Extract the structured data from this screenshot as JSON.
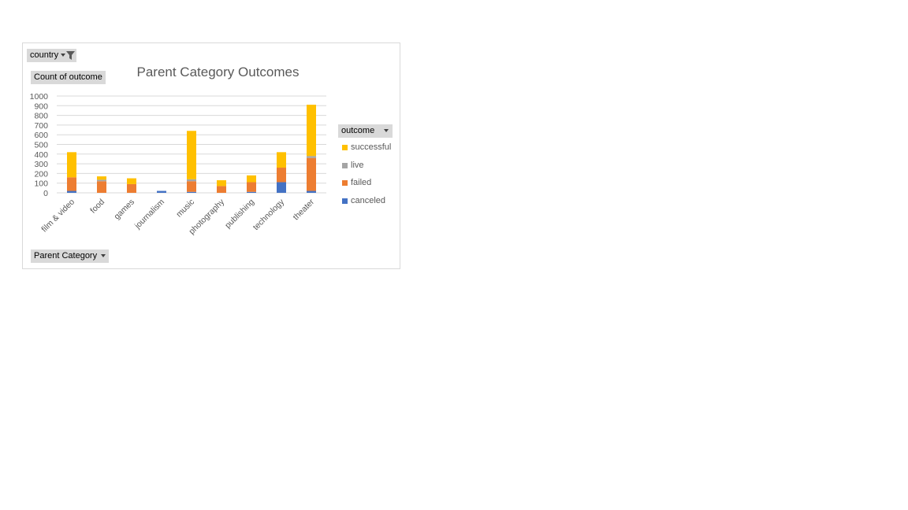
{
  "filter_button": {
    "label": "country",
    "icon": "filter-icon"
  },
  "values_button": {
    "label": "Count of  outcome"
  },
  "axis_button": {
    "label": "Parent Category"
  },
  "legend_button": {
    "label": "outcome"
  },
  "chart_data": {
    "type": "bar",
    "stacked": true,
    "title": "Parent Category Outcomes",
    "categories": [
      "film & video",
      "food",
      "games",
      "journalism",
      "music",
      "photography",
      "publishing",
      "technology",
      "theater"
    ],
    "yticks": [
      "0",
      "100",
      "200",
      "300",
      "400",
      "500",
      "600",
      "700",
      "800",
      "900",
      "1000"
    ],
    "ylim": [
      0,
      1000
    ],
    "grid": true,
    "legend_position": "right",
    "series": [
      {
        "name": "canceled",
        "color": "#4472c4",
        "values": [
          20,
          0,
          0,
          20,
          10,
          0,
          10,
          110,
          20
        ]
      },
      {
        "name": "failed",
        "color": "#ed7d31",
        "values": [
          140,
          120,
          90,
          0,
          110,
          70,
          100,
          150,
          340
        ]
      },
      {
        "name": "live",
        "color": "#a5a5a5",
        "values": [
          0,
          15,
          0,
          0,
          20,
          0,
          0,
          0,
          20
        ]
      },
      {
        "name": "successful",
        "color": "#ffc000",
        "values": [
          260,
          35,
          60,
          0,
          500,
          60,
          70,
          160,
          530
        ]
      }
    ]
  }
}
